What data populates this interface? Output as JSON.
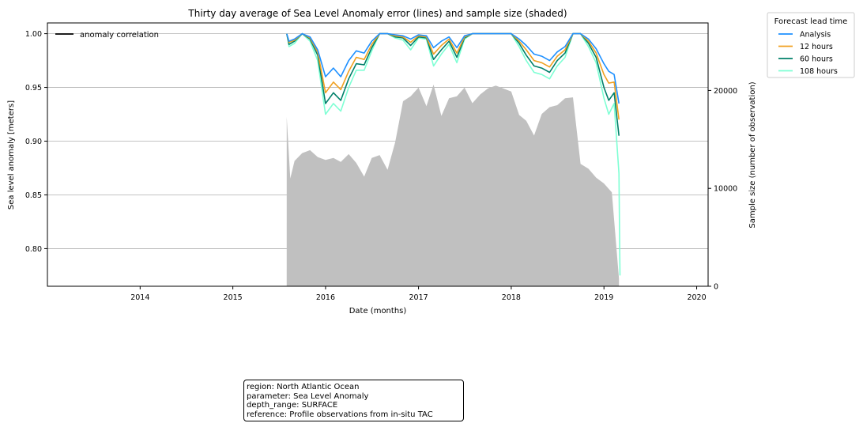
{
  "chart_data": {
    "type": "line",
    "title": "Thirty day average of Sea Level Anomaly error (lines) and sample size (shaded)",
    "xlabel": "Date (months)",
    "ylabel": "Sea level anomaly [meters]",
    "ylabel_right": "Sample size (number of observation)",
    "xlim": [
      "2013-01-01",
      "2020-02-15"
    ],
    "ylim": [
      0.765,
      1.01
    ],
    "ylim_right": [
      0,
      26900
    ],
    "x_ticks": [
      "2014",
      "2015",
      "2016",
      "2017",
      "2018",
      "2019",
      "2020"
    ],
    "y_ticks": [
      "0.80",
      "0.85",
      "0.90",
      "0.95",
      "1.00"
    ],
    "y_ticks_right": [
      "0",
      "10000",
      "20000"
    ],
    "grid": "horizontal",
    "series_legend": {
      "title": "Forecast lead time",
      "placement": "outside-right",
      "entries": [
        {
          "name": "Analysis",
          "color": "#1e90ff"
        },
        {
          "name": "12 hours",
          "color": "#f0a020"
        },
        {
          "name": "60 hours",
          "color": "#00806a"
        },
        {
          "name": "108 hours",
          "color": "#7fffd4"
        }
      ]
    },
    "style_legend": {
      "placement": "upper-left",
      "entries": [
        {
          "name": "anomaly correlation",
          "color": "#000000"
        }
      ]
    },
    "series": [
      {
        "name": "Analysis",
        "color": "#1e90ff",
        "x": [
          "2015-08-01",
          "2015-08-10",
          "2015-09-01",
          "2015-10-01",
          "2015-11-01",
          "2015-12-01",
          "2016-01-01",
          "2016-02-01",
          "2016-03-01",
          "2016-04-01",
          "2016-05-01",
          "2016-06-01",
          "2016-07-01",
          "2016-08-01",
          "2016-09-01",
          "2016-10-01",
          "2016-11-01",
          "2016-12-01",
          "2017-01-01",
          "2017-02-01",
          "2017-03-01",
          "2017-04-01",
          "2017-05-01",
          "2017-06-01",
          "2017-07-01",
          "2017-08-01",
          "2017-09-01",
          "2017-10-01",
          "2017-11-01",
          "2017-12-01",
          "2018-01-01",
          "2018-02-01",
          "2018-03-01",
          "2018-04-01",
          "2018-05-01",
          "2018-06-01",
          "2018-07-01",
          "2018-08-01",
          "2018-09-01",
          "2018-10-01",
          "2018-11-01",
          "2018-12-01",
          "2019-01-01",
          "2019-01-20",
          "2019-02-10",
          "2019-03-01"
        ],
        "values": [
          1.0,
          0.993,
          0.995,
          1.0,
          0.997,
          0.985,
          0.96,
          0.968,
          0.96,
          0.975,
          0.984,
          0.982,
          0.993,
          1.0,
          1.0,
          0.999,
          0.998,
          0.995,
          0.999,
          0.998,
          0.987,
          0.993,
          0.997,
          0.987,
          0.998,
          1.0,
          1.0,
          1.0,
          1.0,
          1.0,
          1.0,
          0.995,
          0.989,
          0.981,
          0.979,
          0.975,
          0.983,
          0.988,
          1.0,
          1.0,
          0.995,
          0.986,
          0.972,
          0.965,
          0.962,
          0.935
        ]
      },
      {
        "name": "12 hours",
        "color": "#f0a020",
        "x": [
          "2015-08-01",
          "2015-08-10",
          "2015-09-01",
          "2015-10-01",
          "2015-11-01",
          "2015-12-01",
          "2016-01-01",
          "2016-02-01",
          "2016-03-01",
          "2016-04-01",
          "2016-05-01",
          "2016-06-01",
          "2016-07-01",
          "2016-08-01",
          "2016-09-01",
          "2016-10-01",
          "2016-11-01",
          "2016-12-01",
          "2017-01-01",
          "2017-02-01",
          "2017-03-01",
          "2017-04-01",
          "2017-05-01",
          "2017-06-01",
          "2017-07-01",
          "2017-08-01",
          "2017-09-01",
          "2017-10-01",
          "2017-11-01",
          "2017-12-01",
          "2018-01-01",
          "2018-02-01",
          "2018-03-01",
          "2018-04-01",
          "2018-05-01",
          "2018-06-01",
          "2018-07-01",
          "2018-08-01",
          "2018-09-01",
          "2018-10-01",
          "2018-11-01",
          "2018-12-01",
          "2019-01-01",
          "2019-01-20",
          "2019-02-10",
          "2019-03-01"
        ],
        "values": [
          1.0,
          0.992,
          0.994,
          1.0,
          0.996,
          0.983,
          0.945,
          0.955,
          0.948,
          0.965,
          0.978,
          0.976,
          0.99,
          1.0,
          1.0,
          0.998,
          0.997,
          0.992,
          0.998,
          0.997,
          0.981,
          0.989,
          0.995,
          0.982,
          0.997,
          1.0,
          1.0,
          1.0,
          1.0,
          1.0,
          1.0,
          0.993,
          0.985,
          0.975,
          0.973,
          0.969,
          0.979,
          0.985,
          1.0,
          1.0,
          0.993,
          0.982,
          0.962,
          0.954,
          0.955,
          0.92
        ]
      },
      {
        "name": "60 hours",
        "color": "#00806a",
        "x": [
          "2015-08-01",
          "2015-08-10",
          "2015-09-01",
          "2015-10-01",
          "2015-11-01",
          "2015-12-01",
          "2016-01-01",
          "2016-02-01",
          "2016-03-01",
          "2016-04-01",
          "2016-05-01",
          "2016-06-01",
          "2016-07-01",
          "2016-08-01",
          "2016-09-01",
          "2016-10-01",
          "2016-11-01",
          "2016-12-01",
          "2017-01-01",
          "2017-02-01",
          "2017-03-01",
          "2017-04-01",
          "2017-05-01",
          "2017-06-01",
          "2017-07-01",
          "2017-08-01",
          "2017-09-01",
          "2017-10-01",
          "2017-11-01",
          "2017-12-01",
          "2018-01-01",
          "2018-02-01",
          "2018-03-01",
          "2018-04-01",
          "2018-05-01",
          "2018-06-01",
          "2018-07-01",
          "2018-08-01",
          "2018-09-01",
          "2018-10-01",
          "2018-11-01",
          "2018-12-01",
          "2019-01-01",
          "2019-01-20",
          "2019-02-10",
          "2019-03-01"
        ],
        "values": [
          1.0,
          0.99,
          0.993,
          1.0,
          0.995,
          0.98,
          0.935,
          0.945,
          0.938,
          0.958,
          0.972,
          0.971,
          0.987,
          1.0,
          1.0,
          0.997,
          0.996,
          0.989,
          0.997,
          0.996,
          0.976,
          0.985,
          0.993,
          0.978,
          0.996,
          1.0,
          1.0,
          1.0,
          1.0,
          1.0,
          1.0,
          0.991,
          0.98,
          0.97,
          0.968,
          0.964,
          0.975,
          0.982,
          1.0,
          1.0,
          0.991,
          0.978,
          0.95,
          0.938,
          0.945,
          0.905
        ]
      },
      {
        "name": "108 hours",
        "color": "#7fffd4",
        "x": [
          "2015-08-01",
          "2015-08-10",
          "2015-09-01",
          "2015-10-01",
          "2015-11-01",
          "2015-12-01",
          "2016-01-01",
          "2016-02-01",
          "2016-03-01",
          "2016-04-01",
          "2016-05-01",
          "2016-06-01",
          "2016-07-01",
          "2016-08-01",
          "2016-09-01",
          "2016-10-01",
          "2016-11-01",
          "2016-12-01",
          "2017-01-01",
          "2017-02-01",
          "2017-03-01",
          "2017-04-01",
          "2017-05-01",
          "2017-06-01",
          "2017-07-01",
          "2017-08-01",
          "2017-09-01",
          "2017-10-01",
          "2017-11-01",
          "2017-12-01",
          "2018-01-01",
          "2018-02-01",
          "2018-03-01",
          "2018-04-01",
          "2018-05-01",
          "2018-06-01",
          "2018-07-01",
          "2018-08-01",
          "2018-09-01",
          "2018-10-01",
          "2018-11-01",
          "2018-12-01",
          "2019-01-01",
          "2019-01-20",
          "2019-02-10",
          "2019-03-01",
          "2019-03-05"
        ],
        "values": [
          1.0,
          0.988,
          0.991,
          1.0,
          0.993,
          0.975,
          0.925,
          0.935,
          0.928,
          0.95,
          0.966,
          0.966,
          0.984,
          1.0,
          1.0,
          0.996,
          0.994,
          0.985,
          0.996,
          0.995,
          0.97,
          0.981,
          0.99,
          0.973,
          0.995,
          1.0,
          1.0,
          1.0,
          1.0,
          1.0,
          1.0,
          0.988,
          0.975,
          0.964,
          0.962,
          0.958,
          0.97,
          0.978,
          1.0,
          1.0,
          0.988,
          0.973,
          0.94,
          0.925,
          0.935,
          0.87,
          0.775
        ]
      }
    ],
    "sample_size": {
      "name": "sample size",
      "color": "#c0c0c0",
      "x": [
        "2015-08-01",
        "2015-08-15",
        "2015-09-01",
        "2015-10-01",
        "2015-11-01",
        "2015-12-01",
        "2016-01-01",
        "2016-02-01",
        "2016-03-01",
        "2016-04-01",
        "2016-05-01",
        "2016-06-01",
        "2016-07-01",
        "2016-08-01",
        "2016-09-01",
        "2016-10-01",
        "2016-11-01",
        "2016-12-01",
        "2017-01-01",
        "2017-02-01",
        "2017-03-01",
        "2017-04-01",
        "2017-05-01",
        "2017-06-01",
        "2017-07-01",
        "2017-08-01",
        "2017-09-01",
        "2017-10-01",
        "2017-11-01",
        "2017-12-01",
        "2018-01-01",
        "2018-02-01",
        "2018-03-01",
        "2018-04-01",
        "2018-05-01",
        "2018-06-01",
        "2018-07-01",
        "2018-08-01",
        "2018-09-01",
        "2018-10-01",
        "2018-11-01",
        "2018-12-01",
        "2019-01-01",
        "2019-02-01",
        "2019-03-01"
      ],
      "values": [
        17300,
        11000,
        12800,
        13600,
        13900,
        13200,
        12900,
        13100,
        12700,
        13500,
        12600,
        11200,
        13100,
        13400,
        11900,
        14700,
        18900,
        19400,
        20300,
        18400,
        20600,
        17400,
        19200,
        19400,
        20300,
        18700,
        19600,
        20200,
        20500,
        20200,
        19900,
        17500,
        16900,
        15400,
        17600,
        18300,
        18500,
        19200,
        19300,
        12500,
        12000,
        11100,
        10500,
        9600,
        800
      ]
    }
  },
  "info_box": {
    "line1": "region: North Atlantic Ocean",
    "line2": "parameter: Sea Level Anomaly",
    "line3": "depth_range: SURFACE",
    "line4": "reference: Profile observations from in-situ TAC"
  }
}
